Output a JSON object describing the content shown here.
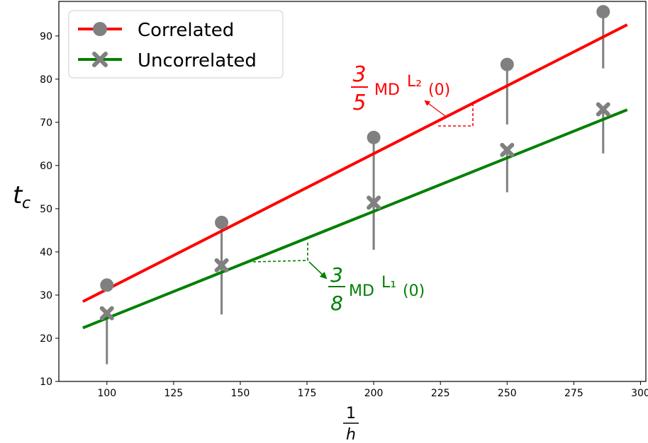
{
  "chart_data": {
    "type": "scatter",
    "title": "",
    "xlabel": {
      "numerator": "1",
      "denominator": "h"
    },
    "ylabel": {
      "base": "t",
      "subscript": "c"
    },
    "xlim": [
      82,
      302
    ],
    "ylim": [
      10,
      98
    ],
    "xticks": [
      100,
      125,
      150,
      175,
      200,
      225,
      250,
      275,
      300
    ],
    "yticks": [
      10,
      20,
      30,
      40,
      50,
      60,
      70,
      80,
      90
    ],
    "grid": false,
    "legend_position": "top-left",
    "x": [
      100,
      143,
      200,
      250,
      286
    ],
    "series": [
      {
        "name": "Correlated",
        "marker": "circle",
        "line_color": "#ff0000",
        "marker_color": "#808080",
        "values": [
          32.3,
          46.8,
          66.5,
          83.4,
          95.6
        ],
        "error_lower": [
          32.3,
          33.5,
          40.5,
          69.5,
          82.5
        ],
        "fit": {
          "x": [
            91,
            295
          ],
          "y": [
            28.5,
            92.6
          ]
        }
      },
      {
        "name": "Uncorrelated",
        "marker": "x",
        "line_color": "#008000",
        "marker_color": "#808080",
        "values": [
          25.8,
          36.9,
          51.4,
          63.6,
          73.0
        ],
        "error_lower": [
          14.0,
          25.5,
          40.5,
          53.8,
          62.8
        ],
        "fit": {
          "x": [
            91,
            295
          ],
          "y": [
            22.4,
            72.9
          ]
        }
      }
    ],
    "annotations": [
      {
        "numerator": "3",
        "denominator": "5",
        "text": "MD",
        "superscript": "L₂",
        "arg": "(0)",
        "color": "#ff0000"
      },
      {
        "numerator": "3",
        "denominator": "8",
        "text": "MD",
        "superscript": "L₁",
        "arg": "(0)",
        "color": "#008000"
      }
    ]
  }
}
